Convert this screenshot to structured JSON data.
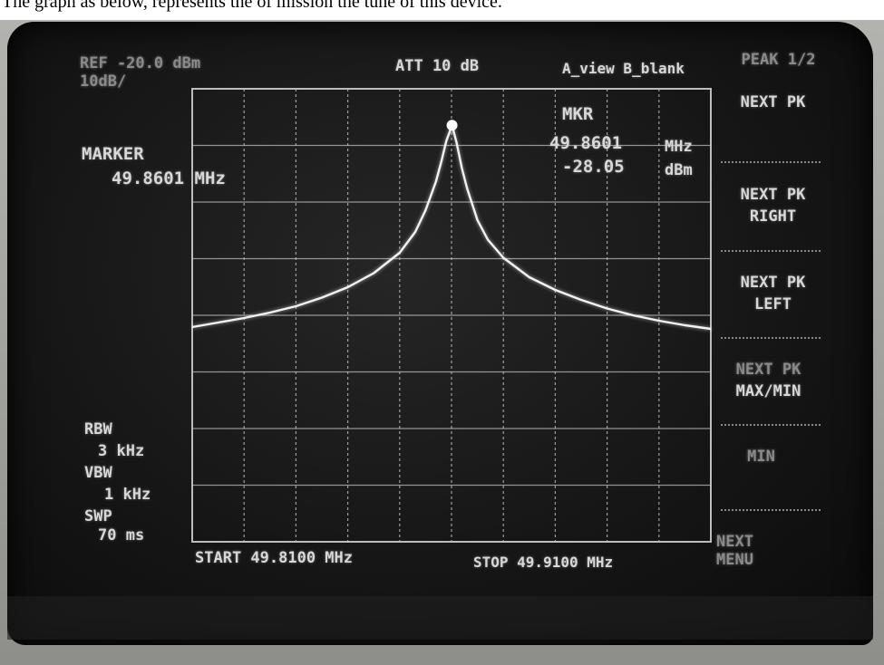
{
  "caption_text": "The graph as below, represents the of mission the tune of this device.",
  "header": {
    "ref": "REF -20.0 dBm",
    "scale": "10dB/",
    "att": "ATT 10 dB",
    "view": "A_view B_blank"
  },
  "marker_panel": {
    "title": "MARKER",
    "freq": "49.8601 MHz"
  },
  "mkr_readout": {
    "title": "MKR",
    "freq": "49.8601",
    "freq_unit": "MHz",
    "amp": "-28.05",
    "amp_unit": "dBm"
  },
  "settings": {
    "rbw_label": "RBW",
    "rbw_value": "3 kHz",
    "vbw_label": "VBW",
    "vbw_value": "1 kHz",
    "swp_label": "SWP",
    "swp_value": "70 ms"
  },
  "softkeys": {
    "title": "PEAK 1/2",
    "next_pk": "NEXT PK",
    "next_pk_right_1": "NEXT PK",
    "next_pk_right_2": "RIGHT",
    "next_pk_left_1": "NEXT PK",
    "next_pk_left_2": "LEFT",
    "next_pk_maxmin_1": "NEXT PK",
    "next_pk_maxmin_2": "MAX/MIN",
    "min": "MIN",
    "next_menu_1": "NEXT",
    "next_menu_2": "MENU"
  },
  "colors": {
    "trace": "#f2f2f2",
    "grid": "#bdbdbd",
    "text": "#d8d8d8"
  },
  "chart_data": {
    "type": "line",
    "title": "",
    "xlabel": "",
    "ylabel": "",
    "start_label": "START 49.8100 MHz",
    "stop_label": "STOP 49.9100 MHz",
    "xlim": [
      49.81,
      49.91
    ],
    "ylim": [
      -120,
      -20
    ],
    "grid": true,
    "grid_divisions": {
      "x": 10,
      "y": 8
    },
    "series": [
      {
        "values_mhz": [
          49.81,
          49.815,
          49.82,
          49.825,
          49.83,
          49.835,
          49.84,
          49.845,
          49.85,
          49.853,
          49.855,
          49.857,
          49.858,
          49.859,
          49.8601,
          49.861,
          49.862,
          49.863,
          49.865,
          49.867,
          49.87,
          49.875,
          49.88,
          49.885,
          49.89,
          49.895,
          49.9,
          49.905,
          49.91
        ],
        "values_dbm": [
          -72.6,
          -71.6,
          -70.6,
          -69.4,
          -68.0,
          -66.1,
          -63.8,
          -60.7,
          -56.2,
          -51.6,
          -46.8,
          -40.5,
          -36.2,
          -31.5,
          -28.05,
          -32.0,
          -37.5,
          -42.0,
          -49.0,
          -53.3,
          -57.3,
          -61.6,
          -64.4,
          -66.6,
          -68.5,
          -70.0,
          -71.2,
          -72.2,
          -73.0
        ]
      }
    ],
    "marker": {
      "x": 49.8601,
      "y": -28.05
    }
  }
}
